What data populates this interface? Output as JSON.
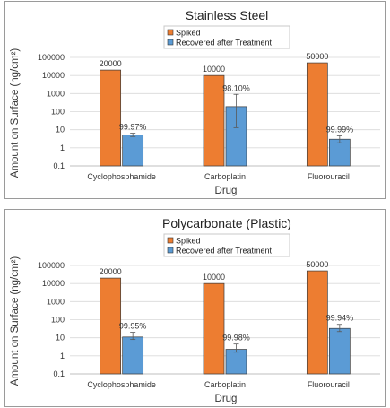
{
  "colors": {
    "spiked": "#ed7d31",
    "recovered": "#5b9bd5",
    "grid": "#d9d9d9",
    "axis": "#bfbfbf",
    "errorbar": "#595959"
  },
  "chart_data": [
    {
      "type": "bar",
      "scale": "log",
      "title": "Stainless Steel",
      "xlabel": "Drug",
      "ylabel": "Amount on Surface (ng/cm²)",
      "ylim": [
        0.1,
        100000
      ],
      "yticks": [
        "100000",
        "10000",
        "1000",
        "100",
        "10",
        "1",
        "0.1"
      ],
      "grid": true,
      "legend_position": "top-center",
      "categories": [
        "Cyclophosphamide",
        "Carboplatin",
        "Fluorouracil"
      ],
      "series": [
        {
          "name": "Spiked",
          "values": [
            20000,
            10000,
            50000
          ],
          "labels": [
            "20000",
            "10000",
            "50000"
          ],
          "error": [
            null,
            null,
            null
          ]
        },
        {
          "name": "Recovered after Treatment",
          "values": [
            5.2,
            190,
            3.0
          ],
          "labels": [
            "99.97%",
            "98.10%",
            "99.99%"
          ],
          "error": [
            [
              4.2,
              6.4
            ],
            [
              13,
              900
            ],
            [
              1.9,
              4.6
            ]
          ]
        }
      ]
    },
    {
      "type": "bar",
      "scale": "log",
      "title": "Polycarbonate (Plastic)",
      "xlabel": "Drug",
      "ylabel": "Amount on Surface (ng/cm²)",
      "ylim": [
        0.1,
        100000
      ],
      "yticks": [
        "100000",
        "10000",
        "1000",
        "100",
        "10",
        "1",
        "0.1"
      ],
      "grid": true,
      "legend_position": "top-center",
      "categories": [
        "Cyclophosphamide",
        "Carboplatin",
        "Fluorouracil"
      ],
      "series": [
        {
          "name": "Spiked",
          "values": [
            20000,
            10000,
            50000
          ],
          "labels": [
            "20000",
            "10000",
            "50000"
          ],
          "error": [
            null,
            null,
            null
          ]
        },
        {
          "name": "Recovered after Treatment",
          "values": [
            11,
            2.3,
            33
          ],
          "labels": [
            "99.95%",
            "99.98%",
            "99.94%"
          ],
          "error": [
            [
              8,
              20
            ],
            [
              1.6,
              4.5
            ],
            [
              22,
              55
            ]
          ]
        }
      ]
    }
  ]
}
